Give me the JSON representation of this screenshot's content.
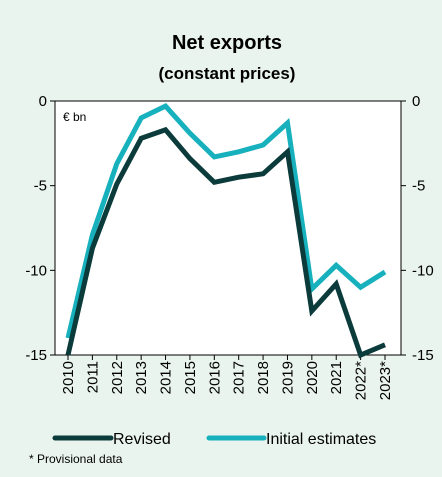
{
  "chart_data": {
    "type": "line",
    "title": "Net exports",
    "subtitle": "(constant prices)",
    "unit_label": "€ bn",
    "categories": [
      "2010",
      "2011",
      "2012",
      "2013",
      "2014",
      "2015",
      "2016",
      "2017",
      "2018",
      "2019",
      "2020",
      "2021",
      "2022*",
      "2023*"
    ],
    "series": [
      {
        "name": "Revised",
        "color": "#0b3b3a",
        "values": [
          -15.0,
          -8.7,
          -4.9,
          -2.2,
          -1.7,
          -3.4,
          -4.8,
          -4.5,
          -4.3,
          -3.0,
          -12.4,
          -10.8,
          -15.0,
          -14.4
        ]
      },
      {
        "name": "Initial estimates",
        "color": "#17b0bd",
        "values": [
          -14.0,
          -7.9,
          -3.7,
          -1.0,
          -0.3,
          -1.9,
          -3.3,
          -3.0,
          -2.6,
          -1.3,
          -11.1,
          -9.7,
          -11.0,
          -10.1
        ]
      }
    ],
    "ylim": [
      -15,
      0
    ],
    "yticks": [
      0,
      -5,
      -10,
      -15
    ],
    "ytick_labels": [
      "0",
      "-5",
      "-10",
      "-15"
    ],
    "grid": false,
    "secondary_axis": true,
    "legend_position": "bottom",
    "footnote": "* Provisional data"
  }
}
